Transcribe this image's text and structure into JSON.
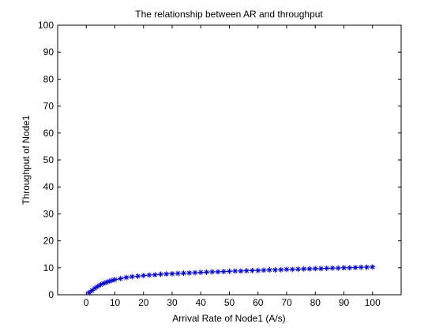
{
  "chart_data": {
    "type": "line",
    "title": "The relationship between AR and throughput",
    "xlabel": "Arrival Rate of Node1 (A/s)",
    "ylabel": "Throughput of Node1",
    "xlim": [
      -10,
      110
    ],
    "ylim": [
      0,
      100
    ],
    "x_ticks": [
      0,
      10,
      20,
      30,
      40,
      50,
      60,
      70,
      80,
      90,
      100
    ],
    "y_ticks": [
      0,
      10,
      20,
      30,
      40,
      50,
      60,
      70,
      80,
      90,
      100
    ],
    "grid": false,
    "marker": "*",
    "series": [
      {
        "color": "#0000cc",
        "x": [
          1,
          2,
          3,
          4,
          5,
          6,
          7,
          8,
          9,
          10,
          12,
          14,
          16,
          18,
          20,
          22,
          24,
          26,
          28,
          30,
          32,
          34,
          36,
          38,
          40,
          42,
          44,
          46,
          48,
          50,
          52,
          54,
          56,
          58,
          60,
          62,
          64,
          66,
          68,
          70,
          72,
          74,
          76,
          78,
          80,
          82,
          84,
          86,
          88,
          90,
          92,
          94,
          96,
          98,
          100
        ],
        "y": [
          0.8,
          1.6,
          2.4,
          3.1,
          3.7,
          4.2,
          4.6,
          5.0,
          5.3,
          5.6,
          6.0,
          6.4,
          6.7,
          6.9,
          7.1,
          7.3,
          7.4,
          7.6,
          7.7,
          7.8,
          7.9,
          8.0,
          8.1,
          8.2,
          8.3,
          8.4,
          8.5,
          8.5,
          8.6,
          8.7,
          8.8,
          8.8,
          8.9,
          9.0,
          9.0,
          9.1,
          9.2,
          9.2,
          9.3,
          9.4,
          9.4,
          9.5,
          9.6,
          9.6,
          9.7,
          9.7,
          9.8,
          9.9,
          9.9,
          10.0,
          10.0,
          10.1,
          10.2,
          10.2,
          10.3
        ]
      }
    ]
  }
}
